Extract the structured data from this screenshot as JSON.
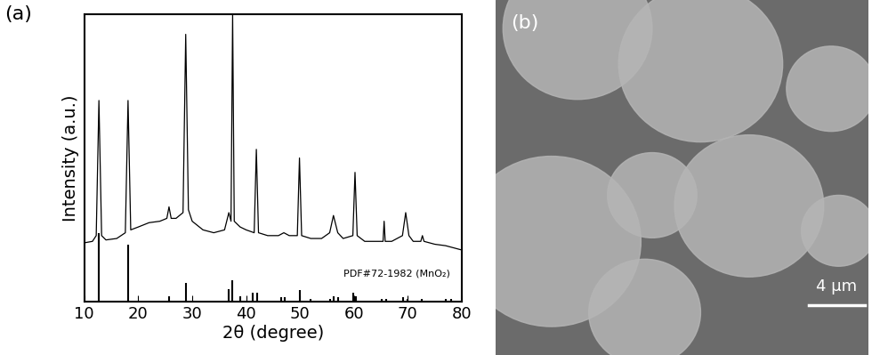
{
  "chart_data": {
    "type": "line",
    "panel_label": "(a)",
    "x_label": "2θ (degree)",
    "y_label": "Intensity (a.u.)",
    "xlim": [
      10,
      80
    ],
    "xticks": [
      10,
      20,
      30,
      40,
      50,
      60,
      70,
      80
    ],
    "ylim": [
      0,
      100
    ],
    "yticks": [],
    "tick_labels": "x",
    "grid": false,
    "series": [
      {
        "type": "line",
        "color": "#000000",
        "x": [
          10,
          11.5,
          12.2,
          12.7,
          13.2,
          14,
          16,
          17.6,
          18.1,
          18.6,
          20,
          22,
          24,
          25.3,
          25.7,
          26.1,
          27,
          28.3,
          28.8,
          29.3,
          30,
          32,
          34,
          36,
          36.8,
          37.2,
          37.5,
          37.8,
          38.9,
          40,
          41.5,
          41.9,
          42.3,
          44,
          46,
          47,
          48,
          49.5,
          49.9,
          50.3,
          52,
          54,
          55.5,
          56.2,
          57,
          58,
          59.8,
          60.2,
          60.6,
          62,
          64,
          65.4,
          65.6,
          65.8,
          67,
          69,
          69.6,
          70.2,
          71,
          72.4,
          72.7,
          73,
          75,
          77,
          80
        ],
        "values": [
          20.5,
          21,
          23,
          70,
          23,
          21.5,
          22,
          24,
          70,
          25,
          26,
          27.5,
          28,
          29,
          33,
          29,
          29,
          31,
          93,
          32,
          28,
          25,
          24,
          25,
          31,
          28,
          100,
          28,
          26,
          25,
          24,
          53,
          24,
          23,
          23,
          24,
          23,
          23,
          50,
          23,
          22,
          22,
          24,
          30,
          24,
          22,
          23,
          45,
          23,
          21,
          21,
          21,
          28,
          21,
          21,
          23,
          31,
          23,
          21,
          21,
          23,
          21,
          20,
          19.5,
          18
        ]
      },
      {
        "type": "bar",
        "name": "PDF#72-1982 (MnO₂)",
        "color": "#000000",
        "x": [
          12.7,
          18.1,
          25.7,
          28.8,
          36.7,
          37.5,
          38.9,
          41.2,
          42.0,
          46.5,
          47.2,
          49.9,
          52.0,
          55.5,
          56.3,
          57.0,
          59.9,
          60.4,
          65.2,
          66.0,
          69.1,
          70.0,
          72.5,
          77.0,
          78.0
        ],
        "values": [
          24,
          20,
          2,
          6.5,
          4.5,
          7.5,
          2,
          3,
          3,
          1.5,
          1.5,
          4,
          1,
          1,
          2,
          1.5,
          3,
          2,
          1,
          1,
          1.5,
          1,
          1,
          1,
          1
        ]
      }
    ]
  },
  "image_panel": {
    "panel_label": "(b)",
    "scale_bar": "4 μm"
  }
}
